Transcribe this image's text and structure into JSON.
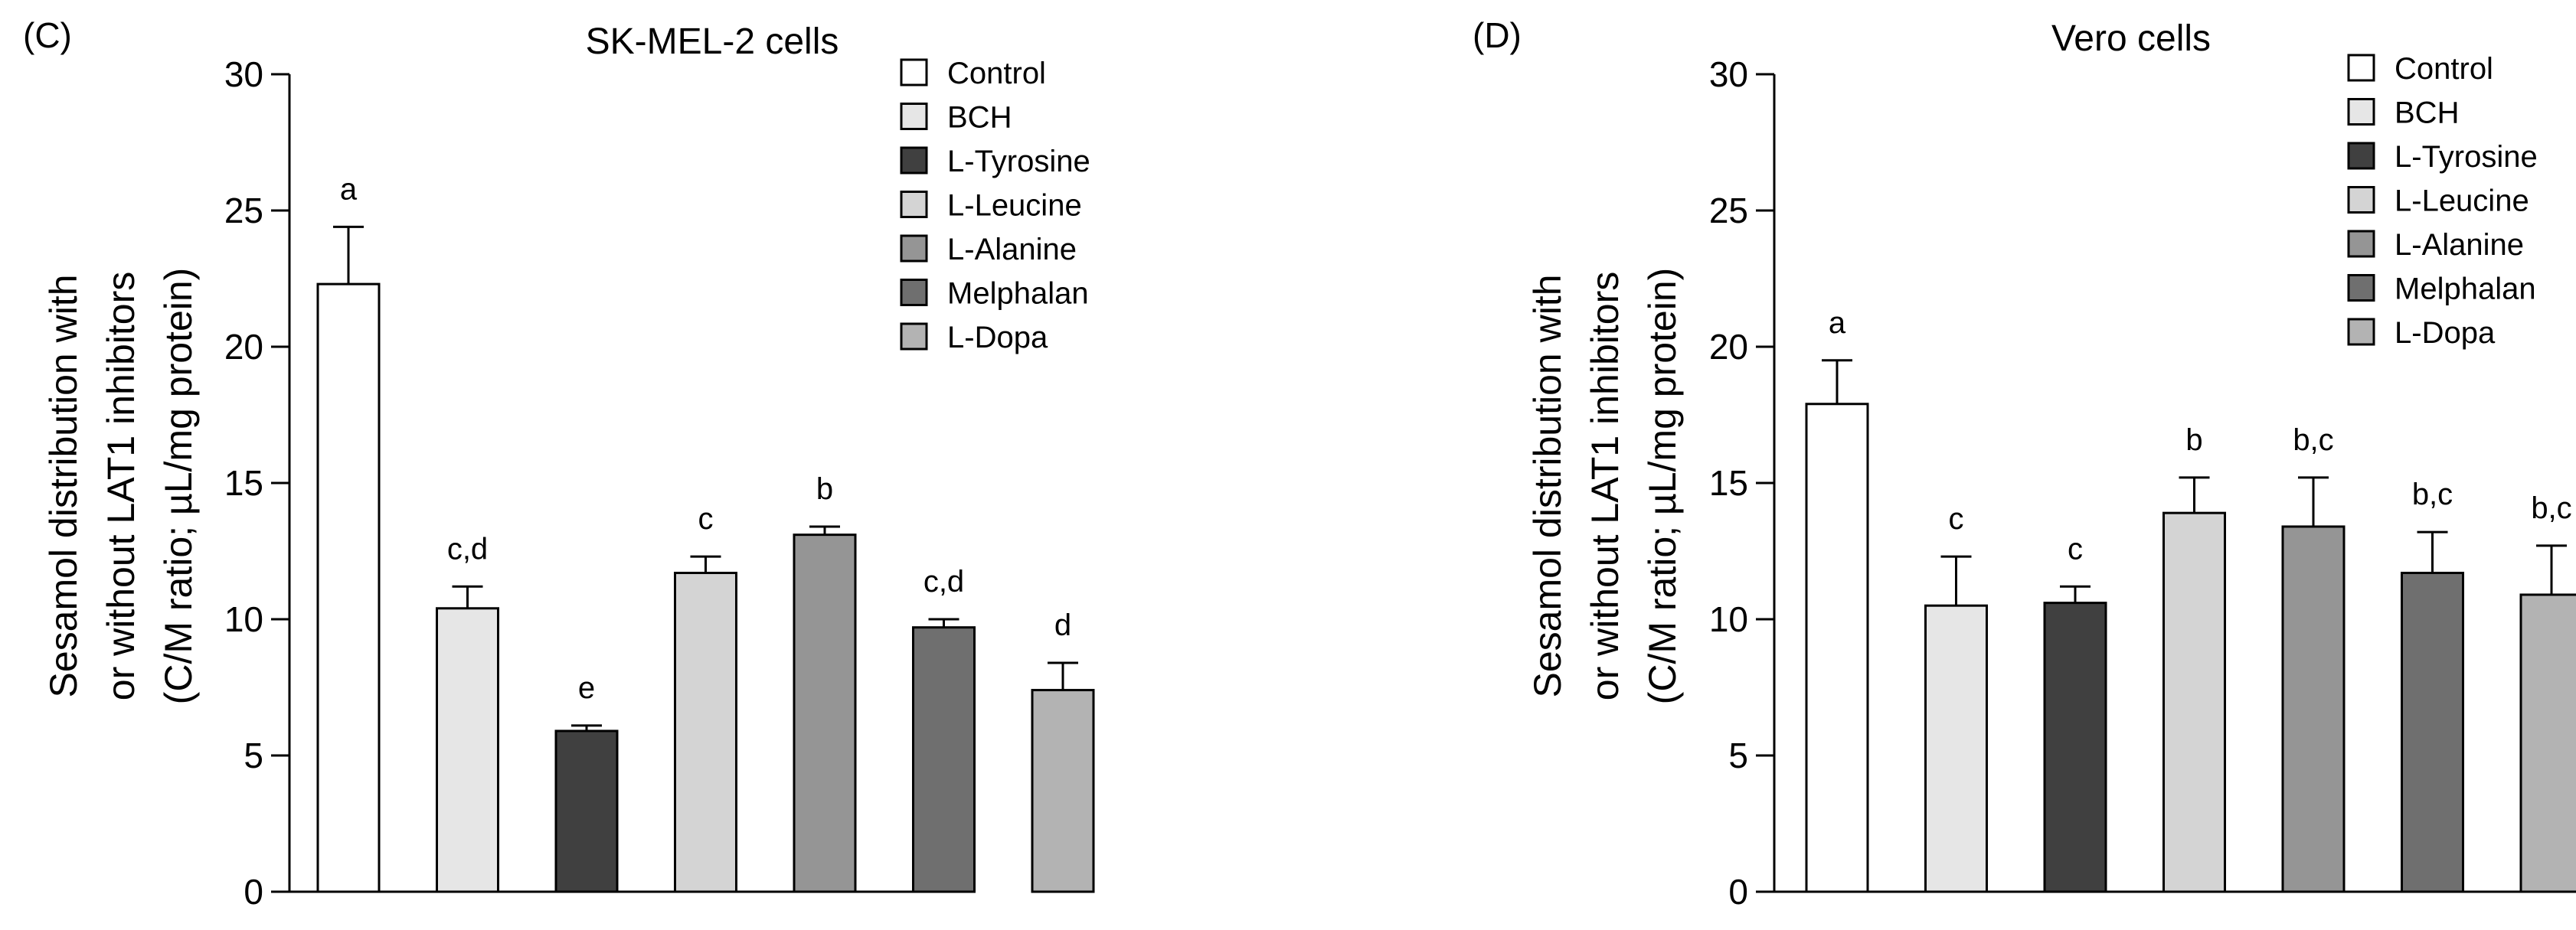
{
  "chart_data": [
    {
      "type": "bar",
      "panel_label": "(C)",
      "title": "SK-MEL-2 cells",
      "ylabel_lines": [
        "Sesamol distribution with",
        "or without LAT1 inhibitors",
        "(C/M ratio; µL/mg protein)"
      ],
      "xlabel": "",
      "ylim": [
        0,
        30
      ],
      "yticks": [
        0,
        5,
        10,
        15,
        20,
        25,
        30
      ],
      "grid": false,
      "legend_position": "top-right",
      "categories": [
        "Control",
        "BCH",
        "L-Tyrosine",
        "L-Leucine",
        "L-Alanine",
        "Melphalan",
        "L-Dopa"
      ],
      "values": [
        22.3,
        10.4,
        5.9,
        11.7,
        13.1,
        9.7,
        7.4
      ],
      "errors": [
        2.1,
        0.8,
        0.2,
        0.6,
        0.3,
        0.3,
        1.0
      ],
      "significance": [
        "a",
        "c,d",
        "e",
        "c",
        "b",
        "c,d",
        "d"
      ],
      "colors": [
        "#ffffff",
        "#e6e6e6",
        "#404040",
        "#d4d4d4",
        "#959595",
        "#6f6f6f",
        "#b3b3b3"
      ]
    },
    {
      "type": "bar",
      "panel_label": "(D)",
      "title": "Vero cells",
      "ylabel_lines": [
        "Sesamol distribution with",
        "or without LAT1 inhibitors",
        "(C/M ratio; µL/mg protein)"
      ],
      "xlabel": "",
      "ylim": [
        0,
        30
      ],
      "yticks": [
        0,
        5,
        10,
        15,
        20,
        25,
        30
      ],
      "grid": false,
      "legend_position": "top-right",
      "categories": [
        "Control",
        "BCH",
        "L-Tyrosine",
        "L-Leucine",
        "L-Alanine",
        "Melphalan",
        "L-Dopa"
      ],
      "values": [
        17.9,
        10.5,
        10.6,
        13.9,
        13.4,
        11.7,
        10.9
      ],
      "errors": [
        1.6,
        1.8,
        0.6,
        1.3,
        1.8,
        1.5,
        1.8
      ],
      "significance": [
        "a",
        "c",
        "c",
        "b",
        "b,c",
        "b,c",
        "b,c"
      ],
      "colors": [
        "#ffffff",
        "#e6e6e6",
        "#404040",
        "#d4d4d4",
        "#959595",
        "#6f6f6f",
        "#b3b3b3"
      ]
    }
  ]
}
